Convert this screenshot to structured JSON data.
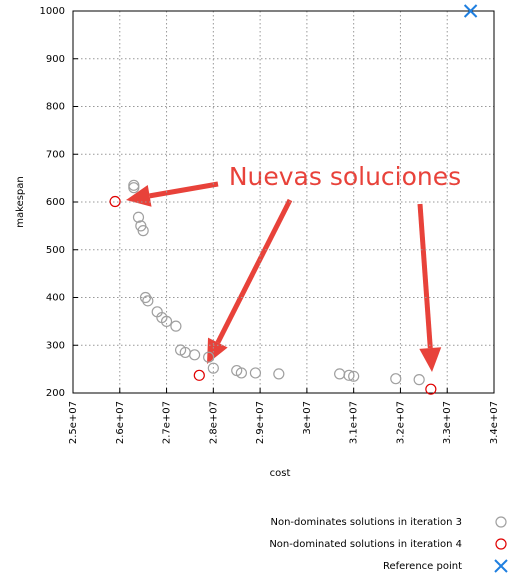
{
  "chart_data": {
    "type": "scatter",
    "xlabel": "cost",
    "ylabel": "makespan",
    "annotation": "Nuevas soluciones",
    "annotation_color": "#e8423a",
    "xlim": [
      25000000,
      34000000
    ],
    "ylim": [
      200,
      1000
    ],
    "xticks": [
      {
        "value": 25000000,
        "label": "2.5e+07"
      },
      {
        "value": 26000000,
        "label": "2.6e+07"
      },
      {
        "value": 27000000,
        "label": "2.7e+07"
      },
      {
        "value": 28000000,
        "label": "2.8e+07"
      },
      {
        "value": 29000000,
        "label": "2.9e+07"
      },
      {
        "value": 30000000,
        "label": "3e+07"
      },
      {
        "value": 31000000,
        "label": "3.1e+07"
      },
      {
        "value": 32000000,
        "label": "3.2e+07"
      },
      {
        "value": 33000000,
        "label": "3.3e+07"
      },
      {
        "value": 34000000,
        "label": "3.4e+07"
      }
    ],
    "yticks": [
      200,
      300,
      400,
      500,
      600,
      700,
      800,
      900,
      1000
    ],
    "grid": true,
    "series": [
      {
        "name": "Non-dominates solutions in iteration 3",
        "color": "#a0a0a0",
        "marker": "circle",
        "x": [
          26300000,
          26300000,
          26400000,
          26450000,
          26500000,
          26550000,
          26600000,
          26800000,
          26900000,
          27000000,
          27200000,
          27300000,
          27400000,
          27600000,
          27900000,
          28000000,
          28500000,
          28600000,
          28900000,
          29400000,
          30700000,
          30900000,
          31000000,
          31900000,
          32400000
        ],
        "values": [
          635,
          630,
          568,
          550,
          540,
          400,
          393,
          370,
          358,
          350,
          340,
          290,
          285,
          280,
          275,
          252,
          247,
          242,
          242,
          240,
          240,
          237,
          235,
          230,
          228
        ]
      },
      {
        "name": "Non-dominated solutions in iteration 4",
        "color": "#e00000",
        "marker": "circle",
        "x": [
          25900000,
          27700000,
          32650000
        ],
        "values": [
          601,
          237,
          208
        ]
      },
      {
        "name": "Reference point",
        "color": "#1f7fe0",
        "marker": "x",
        "x": [
          33500000
        ],
        "values": [
          1000
        ]
      }
    ]
  }
}
